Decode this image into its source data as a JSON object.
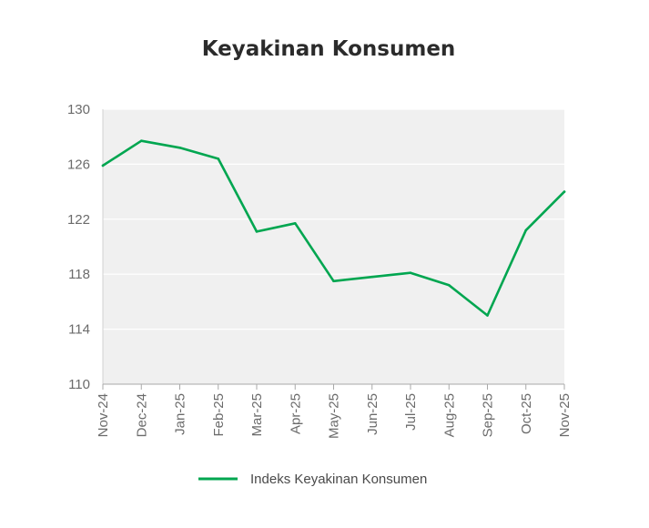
{
  "chart_data": {
    "type": "line",
    "title": "Keyakinan Konsumen",
    "xlabel": "",
    "ylabel": "",
    "categories": [
      "Nov-24",
      "Dec-24",
      "Jan-25",
      "Feb-25",
      "Mar-25",
      "Apr-25",
      "May-25",
      "Jun-25",
      "Jul-25",
      "Aug-25",
      "Sep-25",
      "Oct-25",
      "Nov-25"
    ],
    "series": [
      {
        "name": "Indeks Keyakinan Konsumen",
        "values": [
          125.9,
          127.7,
          127.2,
          126.4,
          121.1,
          121.7,
          117.5,
          117.8,
          118.1,
          117.2,
          115.0,
          121.2,
          124.0
        ],
        "color": "#00a650"
      }
    ],
    "ylim": [
      110,
      130
    ],
    "yticks": [
      110,
      114,
      118,
      122,
      126,
      130
    ],
    "grid": true,
    "legend_position": "bottom-center",
    "plot_background": "#f0f0f0"
  }
}
